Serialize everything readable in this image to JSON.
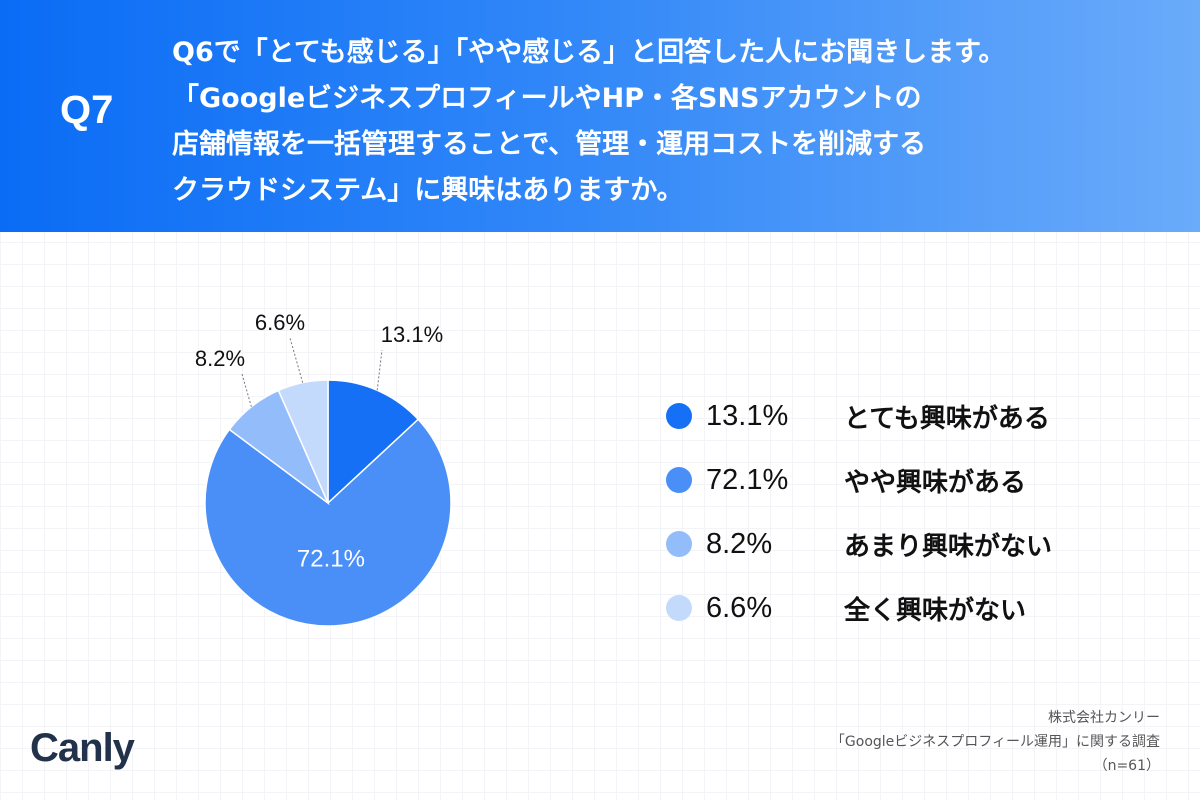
{
  "header": {
    "q_number": "Q7",
    "question_lines": [
      "Q6で「とても感じる」「やや感じる」と回答した人にお聞きします。",
      "「GoogleビジネスプロフィールやHP・各SNSアカウントの",
      "店舗情報を一括管理することで、管理・運用コストを削減する",
      "クラウドシステム」に興味はありますか。"
    ]
  },
  "chart_data": {
    "type": "pie",
    "categories": [
      "とても興味がある",
      "やや興味がある",
      "あまり興味がない",
      "全く興味がない"
    ],
    "values": [
      13.1,
      72.1,
      8.2,
      6.6
    ],
    "value_labels": [
      "13.1%",
      "72.1%",
      "8.2%",
      "6.6%"
    ],
    "colors": [
      "#1570f5",
      "#4a8ff7",
      "#93bcfa",
      "#c4dafc"
    ],
    "title": "",
    "legend_position": "right"
  },
  "legend": {
    "items": [
      {
        "percent": "13.1%",
        "label": "とても興味がある",
        "color": "#1570f5"
      },
      {
        "percent": "72.1%",
        "label": "やや興味がある",
        "color": "#4a8ff7"
      },
      {
        "percent": "8.2%",
        "label": "あまり興味がない",
        "color": "#93bcfa"
      },
      {
        "percent": "6.6%",
        "label": "全く興味がない",
        "color": "#c4dafc"
      }
    ]
  },
  "footer": {
    "logo": "Canly",
    "source_lines": [
      "株式会社カンリー",
      "「Googleビジネスプロフィール運用」に関する調査",
      "（n=61）"
    ]
  }
}
